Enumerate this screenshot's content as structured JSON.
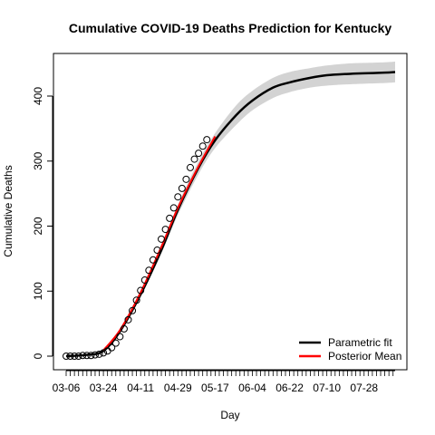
{
  "chart_data": {
    "type": "line",
    "title": "Cumulative COVID-19 Deaths Prediction for Kentucky",
    "xlabel": "Day",
    "ylabel": "Cumulative Deaths",
    "x_tick_labels": [
      "03-06",
      "03-24",
      "04-11",
      "04-29",
      "05-17",
      "06-04",
      "06-22",
      "07-10",
      "07-28"
    ],
    "y_ticks": [
      0,
      100,
      200,
      300,
      400
    ],
    "xlim": [
      "03-06",
      "08-12"
    ],
    "ylim": [
      0,
      440
    ],
    "grid": false,
    "legend_position": "bottom-right",
    "legend": [
      {
        "label": "Parametric fit",
        "color": "#000000"
      },
      {
        "label": "Posterior Mean",
        "color": "#ff0000"
      }
    ],
    "observed_dates": [
      "03-06",
      "03-08",
      "03-10",
      "03-12",
      "03-14",
      "03-16",
      "03-18",
      "03-20",
      "03-22",
      "03-24",
      "03-26",
      "03-28",
      "03-30",
      "04-01",
      "04-03",
      "04-05",
      "04-07",
      "04-09",
      "04-11",
      "04-13",
      "04-15",
      "04-17",
      "04-19",
      "04-21",
      "04-23",
      "04-25",
      "04-27",
      "04-29",
      "05-01",
      "05-03",
      "05-05",
      "05-07",
      "05-09",
      "05-11",
      "05-13"
    ],
    "observed_deaths": [
      0,
      0,
      0,
      0,
      1,
      1,
      1,
      2,
      3,
      5,
      8,
      13,
      20,
      30,
      42,
      56,
      70,
      86,
      101,
      117,
      132,
      148,
      163,
      180,
      195,
      212,
      228,
      245,
      258,
      272,
      290,
      303,
      312,
      323,
      333
    ],
    "fit_dates": [
      "03-06",
      "03-16",
      "03-24",
      "04-01",
      "04-11",
      "04-21",
      "04-29",
      "05-09",
      "05-17",
      "05-27",
      "06-04",
      "06-14",
      "06-22",
      "07-02",
      "07-10",
      "07-20",
      "07-28",
      "08-07",
      "08-12"
    ],
    "fit_deaths": [
      0,
      2,
      8,
      38,
      95,
      163,
      225,
      290,
      332,
      370,
      393,
      413,
      421,
      428,
      432,
      434,
      435,
      436,
      437
    ],
    "band_lower": [
      0,
      1,
      6,
      35,
      92,
      158,
      217,
      280,
      320,
      355,
      378,
      397,
      406,
      413,
      416,
      418,
      419,
      420,
      421
    ],
    "band_upper": [
      0,
      3,
      10,
      41,
      99,
      170,
      233,
      300,
      343,
      385,
      408,
      428,
      437,
      443,
      447,
      450,
      451,
      452,
      453
    ],
    "posterior_mean_dates": [
      "03-24",
      "04-01",
      "04-11",
      "04-21",
      "04-29",
      "05-09",
      "05-17"
    ],
    "posterior_mean_deaths": [
      9,
      40,
      98,
      168,
      228,
      292,
      338
    ]
  }
}
